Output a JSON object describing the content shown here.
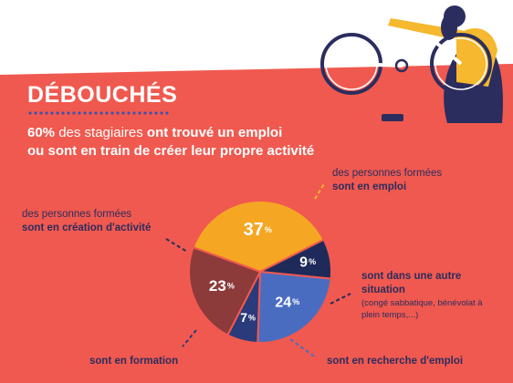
{
  "header": {
    "title": "DÉBOUCHÉS",
    "headline_strong": "60%",
    "headline_mid": " des stagiaires ",
    "headline_rest_line1": "ont trouvé un emploi",
    "headline_line2": "ou sont en train de créer leur propre activité"
  },
  "labels": {
    "emploi_light": "des personnes formées",
    "emploi_bold": "sont en emploi",
    "creation_light": "des personnes formées",
    "creation_bold": "sont en création d'activité",
    "autre_bold": "sont dans une autre situation",
    "autre_small": "(congé sabbatique, bénévolat à plein temps,...)",
    "formation_bold": "sont en formation",
    "recherche_bold": "sont en recherche d'emploi"
  },
  "chart_data": {
    "type": "pie",
    "unit": "%",
    "slices": [
      {
        "label": "sont en emploi",
        "value": 37,
        "color": "#f5a623"
      },
      {
        "label": "sont dans une autre situation",
        "value": 9,
        "color": "#1e2a5a"
      },
      {
        "label": "sont en recherche d'emploi",
        "value": 24,
        "color": "#4a6cc0"
      },
      {
        "label": "sont en formation",
        "value": 7,
        "color": "#2a3a7a"
      },
      {
        "label": "sont en création d'activité",
        "value": 23,
        "color": "#8c3a3a"
      }
    ]
  },
  "colors": {
    "panel": "#f0594f",
    "text_dark": "#2b2d5e",
    "dots": "#3f51a8"
  },
  "icons": {
    "illustration": "cyclist-repairing-bicycle-icon"
  }
}
